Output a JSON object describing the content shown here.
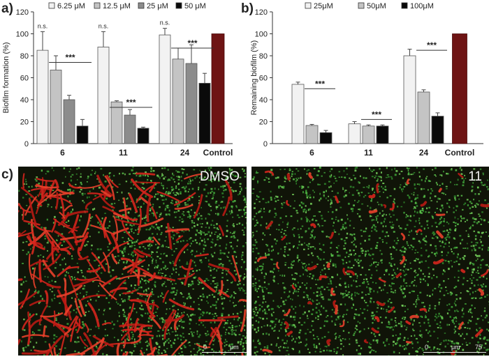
{
  "panels": {
    "a_letter": "a)",
    "b_letter": "b)",
    "c_letter": "c)"
  },
  "chart_data": [
    {
      "id": "a",
      "type": "bar",
      "ylabel": "Biofilm formation (%)",
      "ylim": [
        0,
        120
      ],
      "yticks": [
        "0",
        "20",
        "40",
        "60",
        "80",
        "100",
        "120"
      ],
      "categories": [
        "6",
        "11",
        "24",
        "Control"
      ],
      "legend_position": "top",
      "series": [
        {
          "name": "6.25 μM",
          "color": "#f2f2f2",
          "values": [
            85,
            88,
            99,
            null
          ],
          "errors": [
            17,
            14,
            6,
            null
          ]
        },
        {
          "name": "12.5 μM",
          "color": "#c4c4c4",
          "values": [
            67,
            38,
            77,
            null
          ],
          "errors": [
            13,
            1,
            10,
            null
          ]
        },
        {
          "name": "25 μM",
          "color": "#8c8c8c",
          "values": [
            40,
            26,
            73,
            null
          ],
          "errors": [
            4,
            5,
            17,
            null
          ]
        },
        {
          "name": "50 μM",
          "color": "#0a0a0a",
          "values": [
            16,
            14,
            55,
            null
          ],
          "errors": [
            6,
            1,
            9,
            null
          ]
        }
      ],
      "control": {
        "value": 100,
        "color": "#6e1414"
      },
      "annotations": [
        {
          "text": "n.s.",
          "group": 0
        },
        {
          "text": "n.s.",
          "group": 1
        },
        {
          "text": "n.s.",
          "group": 2
        },
        {
          "text": "***",
          "group": 0,
          "at": 74
        },
        {
          "text": "***",
          "group": 1,
          "at": 33
        },
        {
          "text": "***",
          "group": 2,
          "at": 87
        }
      ]
    },
    {
      "id": "b",
      "type": "bar",
      "ylabel": "Remaining biofilm (%)",
      "ylim": [
        0,
        120
      ],
      "yticks": [
        "0",
        "20",
        "40",
        "60",
        "80",
        "100",
        "120"
      ],
      "categories": [
        "6",
        "11",
        "24",
        "Control"
      ],
      "legend_position": "top",
      "series": [
        {
          "name": "25μM",
          "color": "#f2f2f2",
          "values": [
            54,
            18,
            80,
            null
          ],
          "errors": [
            2,
            2,
            6,
            null
          ]
        },
        {
          "name": "50μM",
          "color": "#c4c4c4",
          "values": [
            16.5,
            16,
            47,
            null
          ],
          "errors": [
            1,
            1,
            2,
            null
          ]
        },
        {
          "name": "100μM",
          "color": "#0a0a0a",
          "values": [
            10,
            16,
            25,
            null
          ],
          "errors": [
            2,
            1,
            3,
            null
          ]
        }
      ],
      "control": {
        "value": 100,
        "color": "#6e1414"
      },
      "annotations": [
        {
          "text": "***",
          "group": 0,
          "at": 50
        },
        {
          "text": "***",
          "group": 1,
          "at": 22
        },
        {
          "text": "***",
          "group": 2,
          "at": 85
        }
      ]
    }
  ],
  "micrographs": [
    {
      "label": "DMSO",
      "scale_start": "0",
      "scale_unit": "μm",
      "scale_end": "75"
    },
    {
      "label": "11",
      "scale_start": "0",
      "scale_unit": "μm",
      "scale_end": "75"
    }
  ]
}
